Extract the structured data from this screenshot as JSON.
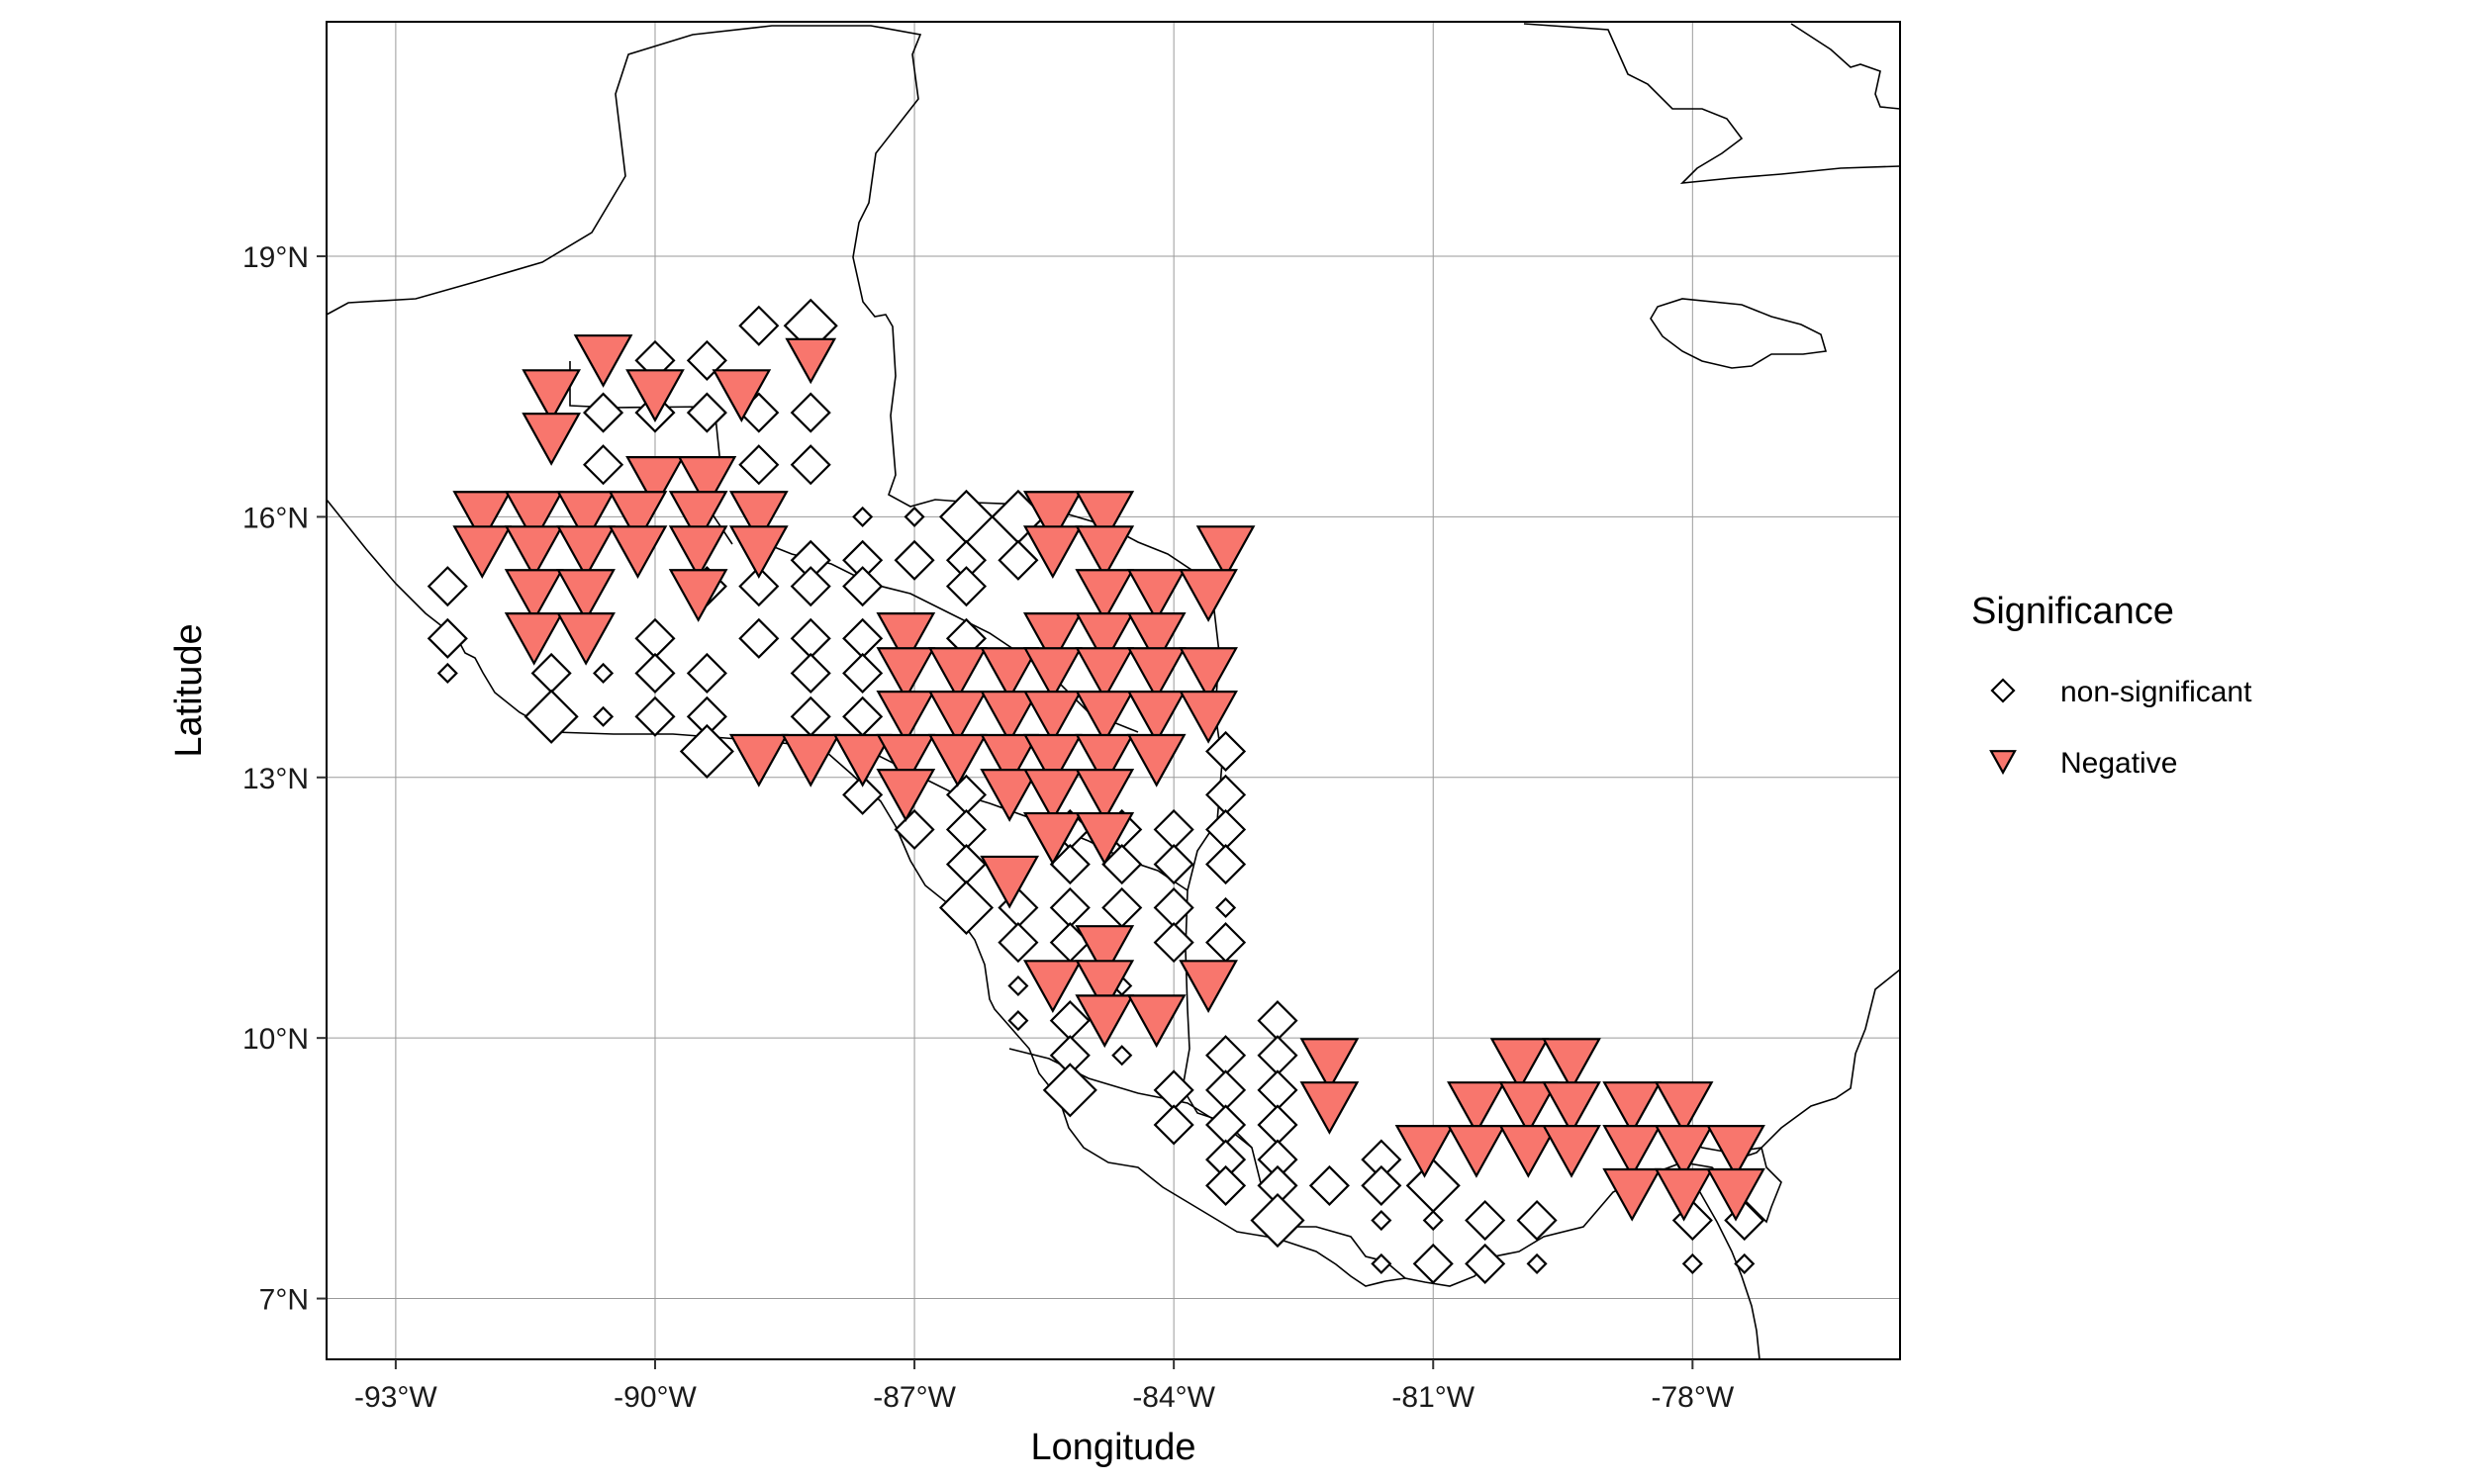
{
  "chart_data": {
    "type": "scatter",
    "title": "",
    "xlabel": "Longitude",
    "ylabel": "Latitude",
    "xlim": [
      -93.8,
      -75.6
    ],
    "ylim": [
      6.3,
      21.7
    ],
    "grid": true,
    "legend_position": "right",
    "x_ticks": [
      {
        "value": -93,
        "label": "-93°W"
      },
      {
        "value": -90,
        "label": "-90°W"
      },
      {
        "value": -87,
        "label": "-87°W"
      },
      {
        "value": -84,
        "label": "-84°W"
      },
      {
        "value": -81,
        "label": "-81°W"
      },
      {
        "value": -78,
        "label": "-78°W"
      }
    ],
    "y_ticks": [
      {
        "value": 7,
        "label": "7°N"
      },
      {
        "value": 10,
        "label": "10°N"
      },
      {
        "value": 13,
        "label": "13°N"
      },
      {
        "value": 16,
        "label": "16°N"
      },
      {
        "value": 19,
        "label": "19°N"
      }
    ],
    "legend": {
      "title": "Significance",
      "entries": [
        {
          "label": "non-significant",
          "shape": "diamond",
          "fill": "#ffffff"
        },
        {
          "label": "Negative",
          "shape": "triangle-down",
          "fill": "#f8766d"
        }
      ]
    },
    "colors": {
      "negative_fill": "#f8766d",
      "outline": "#000000"
    },
    "series": [
      {
        "name": "non-significant",
        "points": [
          [
            -90,
            17.8,
            2
          ],
          [
            -89.4,
            17.8,
            2
          ],
          [
            -88.8,
            18.2,
            2
          ],
          [
            -88.2,
            18.2,
            3
          ],
          [
            -90.6,
            17.2,
            2
          ],
          [
            -90,
            17.2,
            2
          ],
          [
            -89.4,
            17.2,
            2
          ],
          [
            -88.8,
            17.2,
            2
          ],
          [
            -88.2,
            17.2,
            2
          ],
          [
            -90.6,
            16.6,
            2
          ],
          [
            -88.8,
            16.6,
            2
          ],
          [
            -88.2,
            16.6,
            2
          ],
          [
            -87.6,
            16.0,
            1
          ],
          [
            -87,
            16.0,
            1
          ],
          [
            -86.4,
            16.0,
            3
          ],
          [
            -85.8,
            16.0,
            3
          ],
          [
            -88.2,
            15.5,
            2
          ],
          [
            -87.6,
            15.5,
            2
          ],
          [
            -87,
            15.5,
            2
          ],
          [
            -86.4,
            15.5,
            2
          ],
          [
            -85.8,
            15.5,
            2
          ],
          [
            -92.4,
            15.2,
            2
          ],
          [
            -89.4,
            15.2,
            2
          ],
          [
            -88.8,
            15.2,
            2
          ],
          [
            -88.2,
            15.2,
            2
          ],
          [
            -87.6,
            15.2,
            2
          ],
          [
            -86.4,
            15.2,
            2
          ],
          [
            -92.4,
            14.6,
            2
          ],
          [
            -90,
            14.6,
            2
          ],
          [
            -88.8,
            14.6,
            2
          ],
          [
            -88.2,
            14.6,
            2
          ],
          [
            -87.6,
            14.6,
            2
          ],
          [
            -86.4,
            14.6,
            2
          ],
          [
            -92.4,
            14.2,
            1
          ],
          [
            -91.2,
            14.2,
            2
          ],
          [
            -90.6,
            14.2,
            1
          ],
          [
            -90,
            14.2,
            2
          ],
          [
            -89.4,
            14.2,
            2
          ],
          [
            -88.2,
            14.2,
            2
          ],
          [
            -87.6,
            14.2,
            2
          ],
          [
            -91.2,
            13.7,
            3
          ],
          [
            -90.6,
            13.7,
            1
          ],
          [
            -90,
            13.7,
            2
          ],
          [
            -89.4,
            13.7,
            2
          ],
          [
            -88.2,
            13.7,
            2
          ],
          [
            -87.6,
            13.7,
            2
          ],
          [
            -89.4,
            13.3,
            3
          ],
          [
            -83.4,
            13.3,
            2
          ],
          [
            -87.6,
            12.8,
            2
          ],
          [
            -86.4,
            12.8,
            2
          ],
          [
            -83.4,
            12.8,
            2
          ],
          [
            -87,
            12.4,
            2
          ],
          [
            -86.4,
            12.4,
            2
          ],
          [
            -85.2,
            12.4,
            2
          ],
          [
            -84.6,
            12.4,
            2
          ],
          [
            -84,
            12.4,
            2
          ],
          [
            -83.4,
            12.4,
            2
          ],
          [
            -86.4,
            12.0,
            2
          ],
          [
            -85.2,
            12.0,
            2
          ],
          [
            -84.6,
            12.0,
            2
          ],
          [
            -84,
            12.0,
            2
          ],
          [
            -83.4,
            12.0,
            2
          ],
          [
            -86.4,
            11.5,
            3
          ],
          [
            -85.8,
            11.5,
            2
          ],
          [
            -85.2,
            11.5,
            2
          ],
          [
            -84.6,
            11.5,
            2
          ],
          [
            -84,
            11.5,
            2
          ],
          [
            -83.4,
            11.5,
            1
          ],
          [
            -85.8,
            11.1,
            2
          ],
          [
            -85.2,
            11.1,
            2
          ],
          [
            -84,
            11.1,
            2
          ],
          [
            -83.4,
            11.1,
            2
          ],
          [
            -85.8,
            10.6,
            1
          ],
          [
            -84.6,
            10.6,
            1
          ],
          [
            -85.8,
            10.2,
            1
          ],
          [
            -85.2,
            10.2,
            2
          ],
          [
            -82.8,
            10.2,
            2
          ],
          [
            -85.2,
            9.8,
            2
          ],
          [
            -84.6,
            9.8,
            1
          ],
          [
            -83.4,
            9.8,
            2
          ],
          [
            -82.8,
            9.8,
            2
          ],
          [
            -85.2,
            9.4,
            3
          ],
          [
            -84,
            9.4,
            2
          ],
          [
            -83.4,
            9.4,
            2
          ],
          [
            -82.8,
            9.4,
            2
          ],
          [
            -82.2,
            9.4,
            1
          ],
          [
            -84,
            9.0,
            2
          ],
          [
            -83.4,
            9.0,
            2
          ],
          [
            -82.8,
            9.0,
            2
          ],
          [
            -83.4,
            8.6,
            2
          ],
          [
            -82.8,
            8.6,
            2
          ],
          [
            -81.6,
            8.6,
            2
          ],
          [
            -83.4,
            8.3,
            2
          ],
          [
            -82.8,
            8.3,
            2
          ],
          [
            -82.2,
            8.3,
            2
          ],
          [
            -81.6,
            8.3,
            2
          ],
          [
            -81,
            8.3,
            3
          ],
          [
            -81.6,
            7.9,
            1
          ],
          [
            -81,
            7.9,
            1
          ],
          [
            -80.4,
            7.9,
            2
          ],
          [
            -79.8,
            7.9,
            2
          ],
          [
            -82.8,
            7.9,
            3
          ],
          [
            -78,
            7.9,
            2
          ],
          [
            -77.4,
            7.9,
            2
          ],
          [
            -81.6,
            7.4,
            1
          ],
          [
            -81,
            7.4,
            2
          ],
          [
            -80.4,
            7.4,
            2
          ],
          [
            -79.8,
            7.4,
            1
          ],
          [
            -78,
            7.4,
            1
          ],
          [
            -77.4,
            7.4,
            1
          ]
        ]
      },
      {
        "name": "Negative",
        "points": [
          [
            -90.6,
            17.8,
            3
          ],
          [
            -88.2,
            17.8,
            2
          ],
          [
            -91.2,
            17.4,
            3
          ],
          [
            -90,
            17.4,
            3
          ],
          [
            -89,
            17.4,
            3
          ],
          [
            -91.2,
            16.9,
            3
          ],
          [
            -90,
            16.4,
            3
          ],
          [
            -89.4,
            16.4,
            3
          ],
          [
            -92,
            16.0,
            3
          ],
          [
            -91.4,
            16.0,
            3
          ],
          [
            -90.8,
            16.0,
            3
          ],
          [
            -90.2,
            16.0,
            3
          ],
          [
            -89.5,
            16.0,
            3
          ],
          [
            -88.8,
            16.0,
            3
          ],
          [
            -85.4,
            16.0,
            3
          ],
          [
            -84.8,
            16.0,
            3
          ],
          [
            -92,
            15.6,
            3
          ],
          [
            -91.4,
            15.6,
            3
          ],
          [
            -90.8,
            15.6,
            3
          ],
          [
            -90.2,
            15.6,
            3
          ],
          [
            -89.5,
            15.6,
            3
          ],
          [
            -88.8,
            15.6,
            3
          ],
          [
            -85.4,
            15.6,
            3
          ],
          [
            -84.8,
            15.6,
            3
          ],
          [
            -83.4,
            15.6,
            3
          ],
          [
            -91.4,
            15.1,
            3
          ],
          [
            -90.8,
            15.1,
            3
          ],
          [
            -89.5,
            15.1,
            3
          ],
          [
            -84.8,
            15.1,
            3
          ],
          [
            -84.2,
            15.1,
            3
          ],
          [
            -83.6,
            15.1,
            3
          ],
          [
            -91.4,
            14.6,
            3
          ],
          [
            -90.8,
            14.6,
            3
          ],
          [
            -87.1,
            14.6,
            3
          ],
          [
            -85.4,
            14.6,
            3
          ],
          [
            -84.8,
            14.6,
            3
          ],
          [
            -84.2,
            14.6,
            3
          ],
          [
            -87.1,
            14.2,
            3
          ],
          [
            -86.5,
            14.2,
            3
          ],
          [
            -85.9,
            14.2,
            3
          ],
          [
            -85.4,
            14.2,
            3
          ],
          [
            -84.8,
            14.2,
            3
          ],
          [
            -84.2,
            14.2,
            3
          ],
          [
            -83.6,
            14.2,
            3
          ],
          [
            -87.1,
            13.7,
            3
          ],
          [
            -86.5,
            13.7,
            3
          ],
          [
            -85.9,
            13.7,
            3
          ],
          [
            -85.4,
            13.7,
            3
          ],
          [
            -84.8,
            13.7,
            3
          ],
          [
            -84.2,
            13.7,
            3
          ],
          [
            -83.6,
            13.7,
            3
          ],
          [
            -88.8,
            13.2,
            3
          ],
          [
            -88.2,
            13.2,
            3
          ],
          [
            -87.6,
            13.2,
            3
          ],
          [
            -87.1,
            13.2,
            3
          ],
          [
            -86.5,
            13.2,
            3
          ],
          [
            -85.9,
            13.2,
            3
          ],
          [
            -85.4,
            13.2,
            3
          ],
          [
            -84.8,
            13.2,
            3
          ],
          [
            -84.2,
            13.2,
            3
          ],
          [
            -87.1,
            12.8,
            3
          ],
          [
            -85.9,
            12.8,
            3
          ],
          [
            -85.4,
            12.8,
            3
          ],
          [
            -84.8,
            12.8,
            3
          ],
          [
            -85.4,
            12.3,
            3
          ],
          [
            -84.8,
            12.3,
            3
          ],
          [
            -85.9,
            11.8,
            3
          ],
          [
            -84.8,
            11.0,
            3
          ],
          [
            -85.4,
            10.6,
            3
          ],
          [
            -84.8,
            10.6,
            3
          ],
          [
            -83.6,
            10.6,
            3
          ],
          [
            -84.8,
            10.2,
            3
          ],
          [
            -84.2,
            10.2,
            3
          ],
          [
            -82.2,
            9.7,
            3
          ],
          [
            -80,
            9.7,
            3
          ],
          [
            -79.4,
            9.7,
            3
          ],
          [
            -82.2,
            9.2,
            3
          ],
          [
            -80.5,
            9.2,
            3
          ],
          [
            -79.9,
            9.2,
            3
          ],
          [
            -79.4,
            9.2,
            3
          ],
          [
            -78.7,
            9.2,
            3
          ],
          [
            -78.1,
            9.2,
            3
          ],
          [
            -81.1,
            8.7,
            3
          ],
          [
            -80.5,
            8.7,
            3
          ],
          [
            -79.9,
            8.7,
            3
          ],
          [
            -79.4,
            8.7,
            3
          ],
          [
            -78.7,
            8.7,
            3
          ],
          [
            -78.1,
            8.7,
            3
          ],
          [
            -77.5,
            8.7,
            3
          ],
          [
            -78.7,
            8.2,
            3
          ],
          [
            -78.1,
            8.2,
            3
          ],
          [
            -77.5,
            8.2,
            3
          ]
        ]
      }
    ]
  }
}
